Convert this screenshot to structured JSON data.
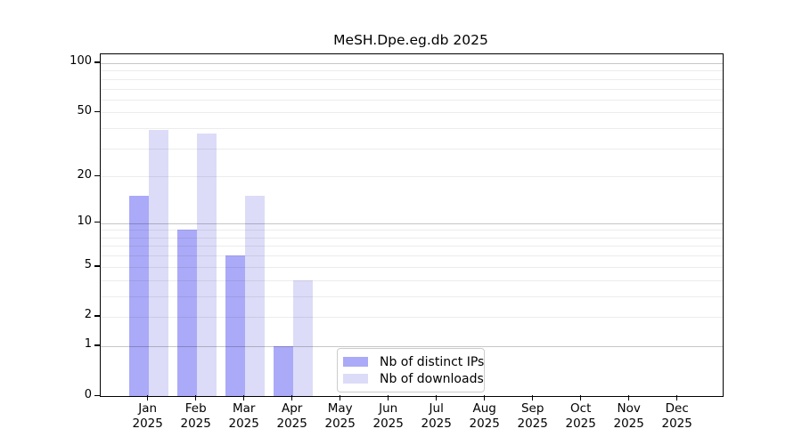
{
  "title": "MeSH.Dpe.eg.db 2025",
  "chart_data": {
    "type": "bar",
    "title": "MeSH.Dpe.eg.db 2025",
    "year_label": "2025",
    "categories": [
      "Jan",
      "Feb",
      "Mar",
      "Apr",
      "May",
      "Jun",
      "Jul",
      "Aug",
      "Sep",
      "Oct",
      "Nov",
      "Dec"
    ],
    "series": [
      {
        "name": "Nb of distinct IPs",
        "color": "#aaaaf8",
        "values": [
          15,
          9,
          6,
          1,
          0,
          0,
          0,
          0,
          0,
          0,
          0,
          0
        ]
      },
      {
        "name": "Nb of downloads",
        "color": "#dcdcf8",
        "values": [
          39,
          37,
          15,
          4,
          0,
          0,
          0,
          0,
          0,
          0,
          0,
          0
        ]
      }
    ],
    "yscale": "log10(1+x)",
    "yticks": [
      0,
      1,
      2,
      5,
      10,
      20,
      50,
      100
    ],
    "ylim": [
      0,
      113
    ],
    "grid": {
      "major_lines": [
        1,
        10,
        100
      ],
      "minor_lines": [
        2,
        3,
        4,
        5,
        6,
        7,
        8,
        9,
        20,
        30,
        40,
        50,
        60,
        70,
        80,
        90
      ]
    },
    "legend": {
      "position": "inside-bottom-center",
      "entries": [
        "Nb of distinct IPs",
        "Nb of downloads"
      ]
    }
  }
}
